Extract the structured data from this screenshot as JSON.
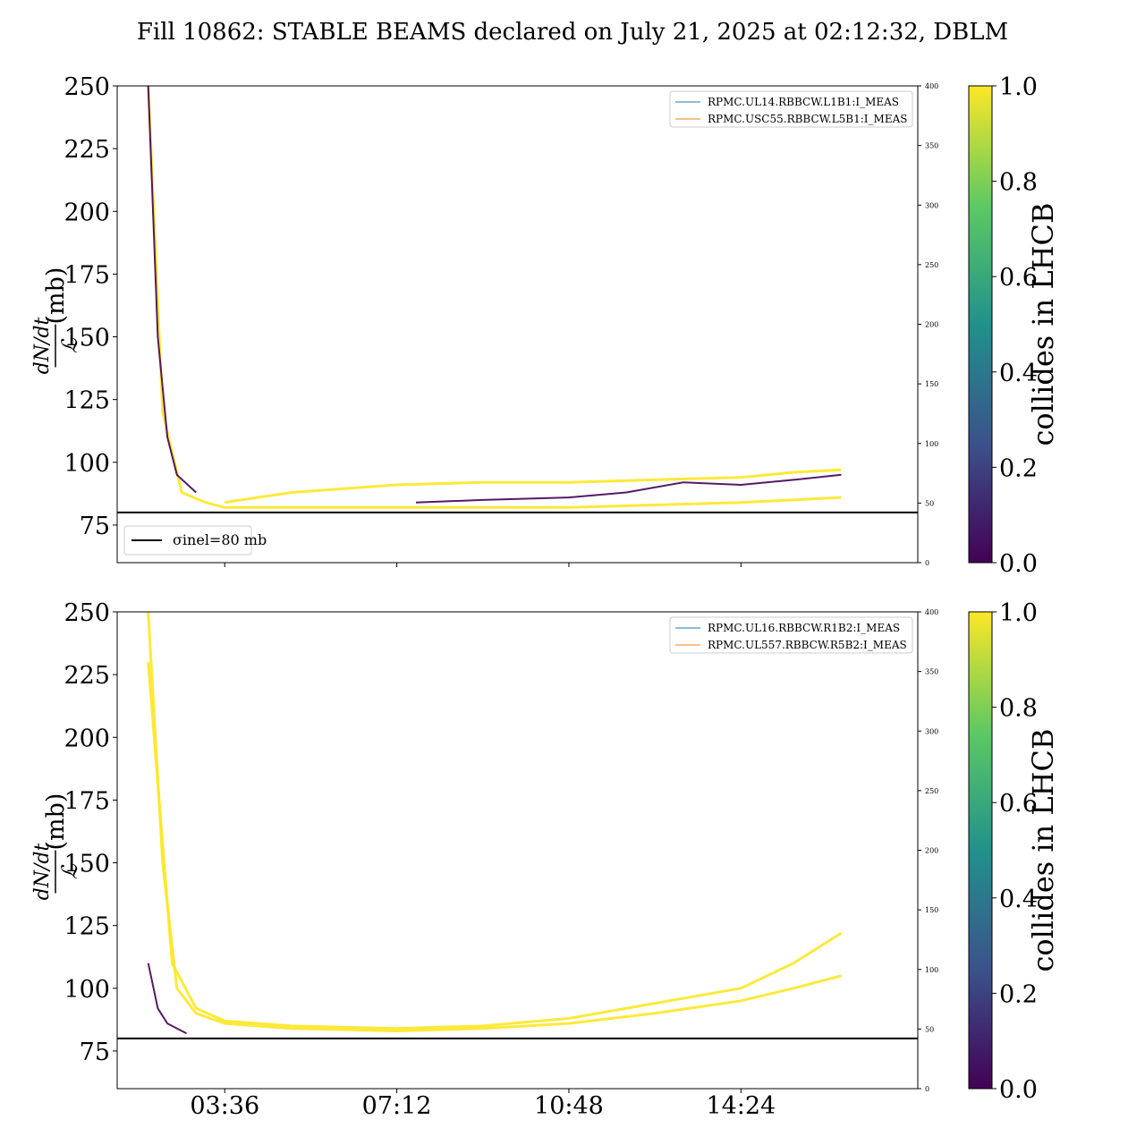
{
  "title": "Fill 10862: STABLE BEAMS declared on July 21, 2025 at 02:12:32, DBLM",
  "colors": {
    "collides_1": "#fde725",
    "collides_0": "#440154",
    "sigma_line": "#000000",
    "rp_line_1": "#1f77b4",
    "rp_line_2": "#ff7f0e",
    "colormap": [
      "#440154",
      "#3b528b",
      "#21918c",
      "#5ec962",
      "#fde725"
    ]
  },
  "chart_data": [
    {
      "type": "line",
      "panel": "top",
      "ylabel_num": "dN/dt",
      "ylabel_den": "ℒ",
      "ylabel_unit": "(mb)",
      "ylim": [
        60,
        250
      ],
      "yticks": [
        75,
        100,
        125,
        150,
        175,
        200,
        225,
        250
      ],
      "y2lim": [
        0,
        400
      ],
      "y2ticks": [
        0,
        50,
        100,
        150,
        200,
        250,
        300,
        350,
        400
      ],
      "xlim_hours": [
        1.35,
        18.1
      ],
      "xticks_hours": [
        3.6,
        7.2,
        10.8,
        14.4
      ],
      "xticklabels": [],
      "sigma_inel": 80,
      "sigma_legend": "σinel=80 mb",
      "sigma_legend_sub": "inel",
      "legend_placement": "upper right",
      "legend": [
        "RPMC.UL14.RBBCW.L1B1:I_MEAS",
        "RPMC.USC55.RBBCW.L5B1:I_MEAS"
      ],
      "colorbar": {
        "label": "collides in LHCB",
        "ticks": [
          "0.0",
          "0.2",
          "0.4",
          "0.6",
          "0.8",
          "1.0"
        ]
      },
      "series": [
        {
          "collides": 1,
          "x": [
            2.0,
            2.3,
            2.7,
            3.2,
            3.6,
            4.5,
            6,
            7.2,
            9,
            10.8,
            12.6,
            14.4,
            15.5,
            16.5
          ],
          "y": [
            250,
            120,
            88,
            84,
            82,
            82,
            82,
            82,
            82,
            82,
            83,
            84,
            85,
            86
          ]
        },
        {
          "collides": 1,
          "x": [
            3.6,
            5,
            7.2,
            9,
            10.8,
            12.6,
            14.4,
            15.5,
            16.5
          ],
          "y": [
            84,
            88,
            91,
            92,
            92,
            93,
            94,
            96,
            97
          ]
        },
        {
          "collides": 0,
          "x": [
            2.0,
            2.2,
            2.4,
            2.6,
            3.0
          ],
          "y": [
            250,
            150,
            110,
            95,
            88
          ]
        },
        {
          "collides": 0,
          "x": [
            7.6,
            9,
            10.8,
            12,
            13.2,
            14.4,
            15.5,
            16.5
          ],
          "y": [
            84,
            85,
            86,
            88,
            92,
            91,
            93,
            95
          ]
        }
      ]
    },
    {
      "type": "line",
      "panel": "bottom",
      "ylabel_num": "dN/dt",
      "ylabel_den": "ℒ",
      "ylabel_unit": "(mb)",
      "ylim": [
        60,
        250
      ],
      "yticks": [
        75,
        100,
        125,
        150,
        175,
        200,
        225,
        250
      ],
      "y2lim": [
        0,
        400
      ],
      "y2ticks": [
        0,
        50,
        100,
        150,
        200,
        250,
        300,
        350,
        400
      ],
      "xlim_hours": [
        1.35,
        18.1
      ],
      "xticks_hours": [
        3.6,
        7.2,
        10.8,
        14.4
      ],
      "xticklabels": [
        "03:36",
        "07:12",
        "10:48",
        "14:24"
      ],
      "sigma_inel": 80,
      "legend_placement": "upper right",
      "legend": [
        "RPMC.UL16.RBBCW.R1B2:I_MEAS",
        "RPMC.UL557.RBBCW.R5B2:I_MEAS"
      ],
      "colorbar": {
        "label": "collides in LHCB",
        "ticks": [
          "0.0",
          "0.2",
          "0.4",
          "0.6",
          "0.8",
          "1.0"
        ]
      },
      "series": [
        {
          "collides": 1,
          "x": [
            2.0,
            2.3,
            2.6,
            3.0,
            3.6,
            5,
            7.2,
            9,
            10.8,
            12.6,
            14.4,
            15.5,
            16.5
          ],
          "y": [
            250,
            150,
            100,
            90,
            86,
            84,
            83,
            84,
            86,
            90,
            95,
            100,
            105
          ]
        },
        {
          "collides": 1,
          "x": [
            2.0,
            2.5,
            3.0,
            3.6,
            5,
            7.2,
            9,
            10.8,
            12.6,
            14.4,
            15.5,
            16.5
          ],
          "y": [
            230,
            110,
            92,
            87,
            85,
            84,
            85,
            88,
            94,
            100,
            110,
            122
          ]
        },
        {
          "collides": 0,
          "x": [
            2.0,
            2.2,
            2.4,
            2.8
          ],
          "y": [
            110,
            92,
            86,
            82
          ]
        }
      ]
    }
  ]
}
